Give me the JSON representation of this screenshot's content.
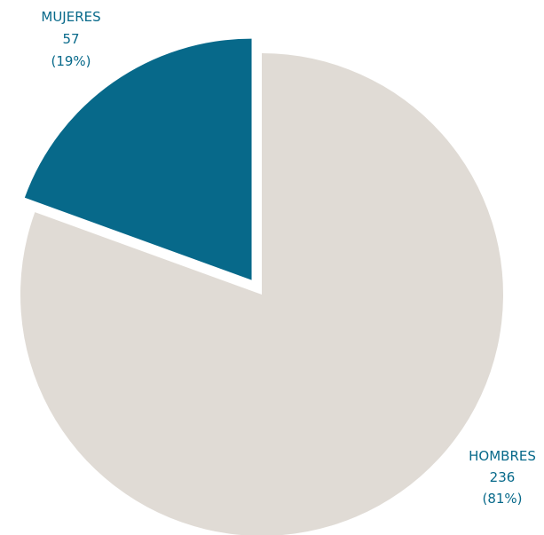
{
  "chart_data": {
    "type": "pie",
    "title": "",
    "slices": [
      {
        "name": "HOMBRES",
        "value": 236,
        "percent_label": "(81%)",
        "color": "#e0dbd5",
        "exploded": false
      },
      {
        "name": "MUJERES",
        "value": 57,
        "percent_label": "(19%)",
        "color": "#07698a",
        "exploded": true
      }
    ],
    "label_color": "#07698a"
  }
}
